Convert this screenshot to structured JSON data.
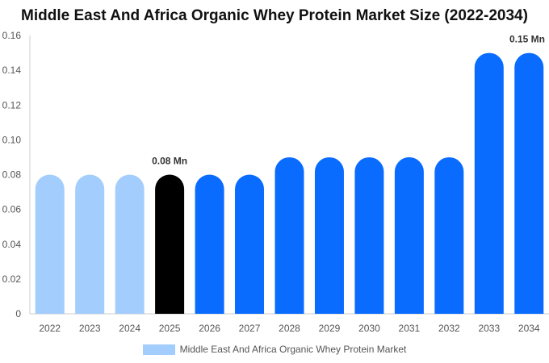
{
  "chart_data": {
    "type": "bar",
    "title": "Middle East And Africa Organic Whey Protein Market Size (2022-2034)",
    "xlabel": "",
    "ylabel": "",
    "ylim": [
      0,
      0.16
    ],
    "yticks": [
      "0",
      "0.02",
      "0.04",
      "0.06",
      "0.08",
      "0.10",
      "0.12",
      "0.14",
      "0.16"
    ],
    "categories": [
      "2022",
      "2023",
      "2024",
      "2025",
      "2026",
      "2027",
      "2028",
      "2029",
      "2030",
      "2031",
      "2032",
      "2033",
      "2034"
    ],
    "series": [
      {
        "name": "Middle East And Africa Organic Whey Protein Market",
        "values": [
          0.08,
          0.08,
          0.08,
          0.08,
          0.08,
          0.08,
          0.09,
          0.09,
          0.09,
          0.09,
          0.09,
          0.15,
          0.15
        ]
      }
    ],
    "bar_colors": [
      "#a3cdfd",
      "#a3cdfd",
      "#a3cdfd",
      "#000000",
      "#0a6cff",
      "#0a6cff",
      "#0a6cff",
      "#0a6cff",
      "#0a6cff",
      "#0a6cff",
      "#0a6cff",
      "#0a6cff",
      "#0a6cff"
    ],
    "data_labels": [
      {
        "index": 3,
        "text": "0.08 Mn"
      },
      {
        "index": 12,
        "text": "0.15 Mn"
      }
    ],
    "legend": {
      "position": "bottom",
      "color": "#a3cdfd"
    },
    "grid": false
  }
}
